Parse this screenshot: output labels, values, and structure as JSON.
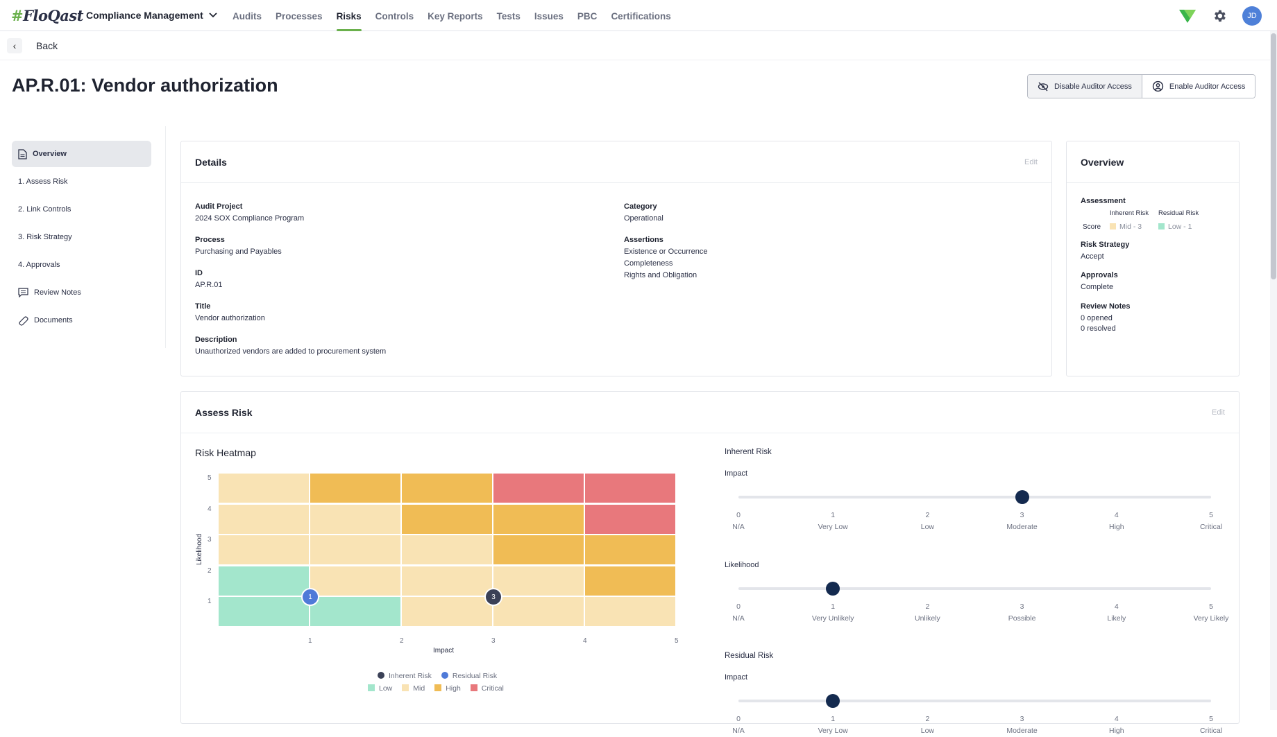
{
  "topbar": {
    "logo": "FloQast",
    "module": "Compliance Management",
    "nav": [
      "Audits",
      "Processes",
      "Risks",
      "Controls",
      "Key Reports",
      "Tests",
      "Issues",
      "PBC",
      "Certifications"
    ],
    "active_nav": "Risks",
    "avatar": "JD"
  },
  "back": {
    "label": "Back"
  },
  "page": {
    "title": "AP.R.01: Vendor authorization",
    "disable_auditor": "Disable Auditor Access",
    "enable_auditor": "Enable Auditor Access"
  },
  "leftnav": {
    "items": [
      "Overview",
      "1. Assess Risk",
      "2. Link Controls",
      "3. Risk Strategy",
      "4. Approvals",
      "Review Notes",
      "Documents"
    ]
  },
  "details": {
    "title": "Details",
    "edit": "Edit",
    "audit_project_label": "Audit Project",
    "audit_project": "2024 SOX Compliance Program",
    "process_label": "Process",
    "process": "Purchasing and Payables",
    "id_label": "ID",
    "id": "AP.R.01",
    "title_label": "Title",
    "title_value": "Vendor authorization",
    "description_label": "Description",
    "description": "Unauthorized vendors are added to procurement system",
    "category_label": "Category",
    "category": "Operational",
    "assertions_label": "Assertions",
    "assertions": [
      "Existence or Occurrence",
      "Completeness",
      "Rights and Obligation"
    ]
  },
  "overview": {
    "title": "Overview",
    "assessment_label": "Assessment",
    "inherent_label": "Inherent Risk",
    "residual_label": "Residual Risk",
    "score_label": "Score",
    "inherent_score": "Mid - 3",
    "residual_score": "Low - 1",
    "strategy_label": "Risk Strategy",
    "strategy": "Accept",
    "approvals_label": "Approvals",
    "approvals": "Complete",
    "review_label": "Review Notes",
    "review_opened": "0 opened",
    "review_resolved": "0 resolved"
  },
  "assess": {
    "title": "Assess Risk",
    "edit": "Edit",
    "heatmap_title": "Risk Heatmap",
    "inherent_title": "Inherent Risk",
    "residual_title": "Residual Risk",
    "impact_label": "Impact",
    "likelihood_label": "Likelihood",
    "impact_stops": [
      [
        "0",
        "N/A"
      ],
      [
        "1",
        "Very Low"
      ],
      [
        "2",
        "Low"
      ],
      [
        "3",
        "Moderate"
      ],
      [
        "4",
        "High"
      ],
      [
        "5",
        "Critical"
      ]
    ],
    "likelihood_stops": [
      [
        "0",
        "N/A"
      ],
      [
        "1",
        "Very Unlikely"
      ],
      [
        "2",
        "Unlikely"
      ],
      [
        "3",
        "Possible"
      ],
      [
        "4",
        "Likely"
      ],
      [
        "5",
        "Very Likely"
      ]
    ],
    "inherent_impact": 3,
    "inherent_likelihood": 1,
    "residual_impact": 1
  },
  "chart_data": {
    "type": "heatmap",
    "title": "Risk Heatmap",
    "xlabel": "Impact",
    "ylabel": "Likelihood",
    "x_ticks": [
      1,
      2,
      3,
      4,
      5
    ],
    "y_ticks": [
      1,
      2,
      3,
      4,
      5
    ],
    "grid": [
      [
        "mid",
        "high",
        "high",
        "critical",
        "critical"
      ],
      [
        "mid",
        "mid",
        "high",
        "high",
        "critical"
      ],
      [
        "mid",
        "mid",
        "mid",
        "high",
        "high"
      ],
      [
        "low",
        "mid",
        "mid",
        "mid",
        "high"
      ],
      [
        "low",
        "low",
        "mid",
        "mid",
        "mid"
      ]
    ],
    "grid_rows_top_to_bottom_likelihood": [
      5,
      4,
      3,
      2,
      1
    ],
    "points": [
      {
        "series": "Inherent Risk",
        "label": "3",
        "impact": 3,
        "likelihood": 1
      },
      {
        "series": "Residual Risk",
        "label": "1",
        "impact": 1,
        "likelihood": 1
      }
    ],
    "legend_series": [
      "Inherent Risk",
      "Residual Risk"
    ],
    "legend_levels": [
      "Low",
      "Mid",
      "High",
      "Critical"
    ],
    "colors": {
      "low": "#a3e6cc",
      "mid": "#f9e3b4",
      "high": "#f0bc55",
      "critical": "#e8787c",
      "inherent": "#3b4157",
      "residual": "#4f7ad8"
    }
  }
}
